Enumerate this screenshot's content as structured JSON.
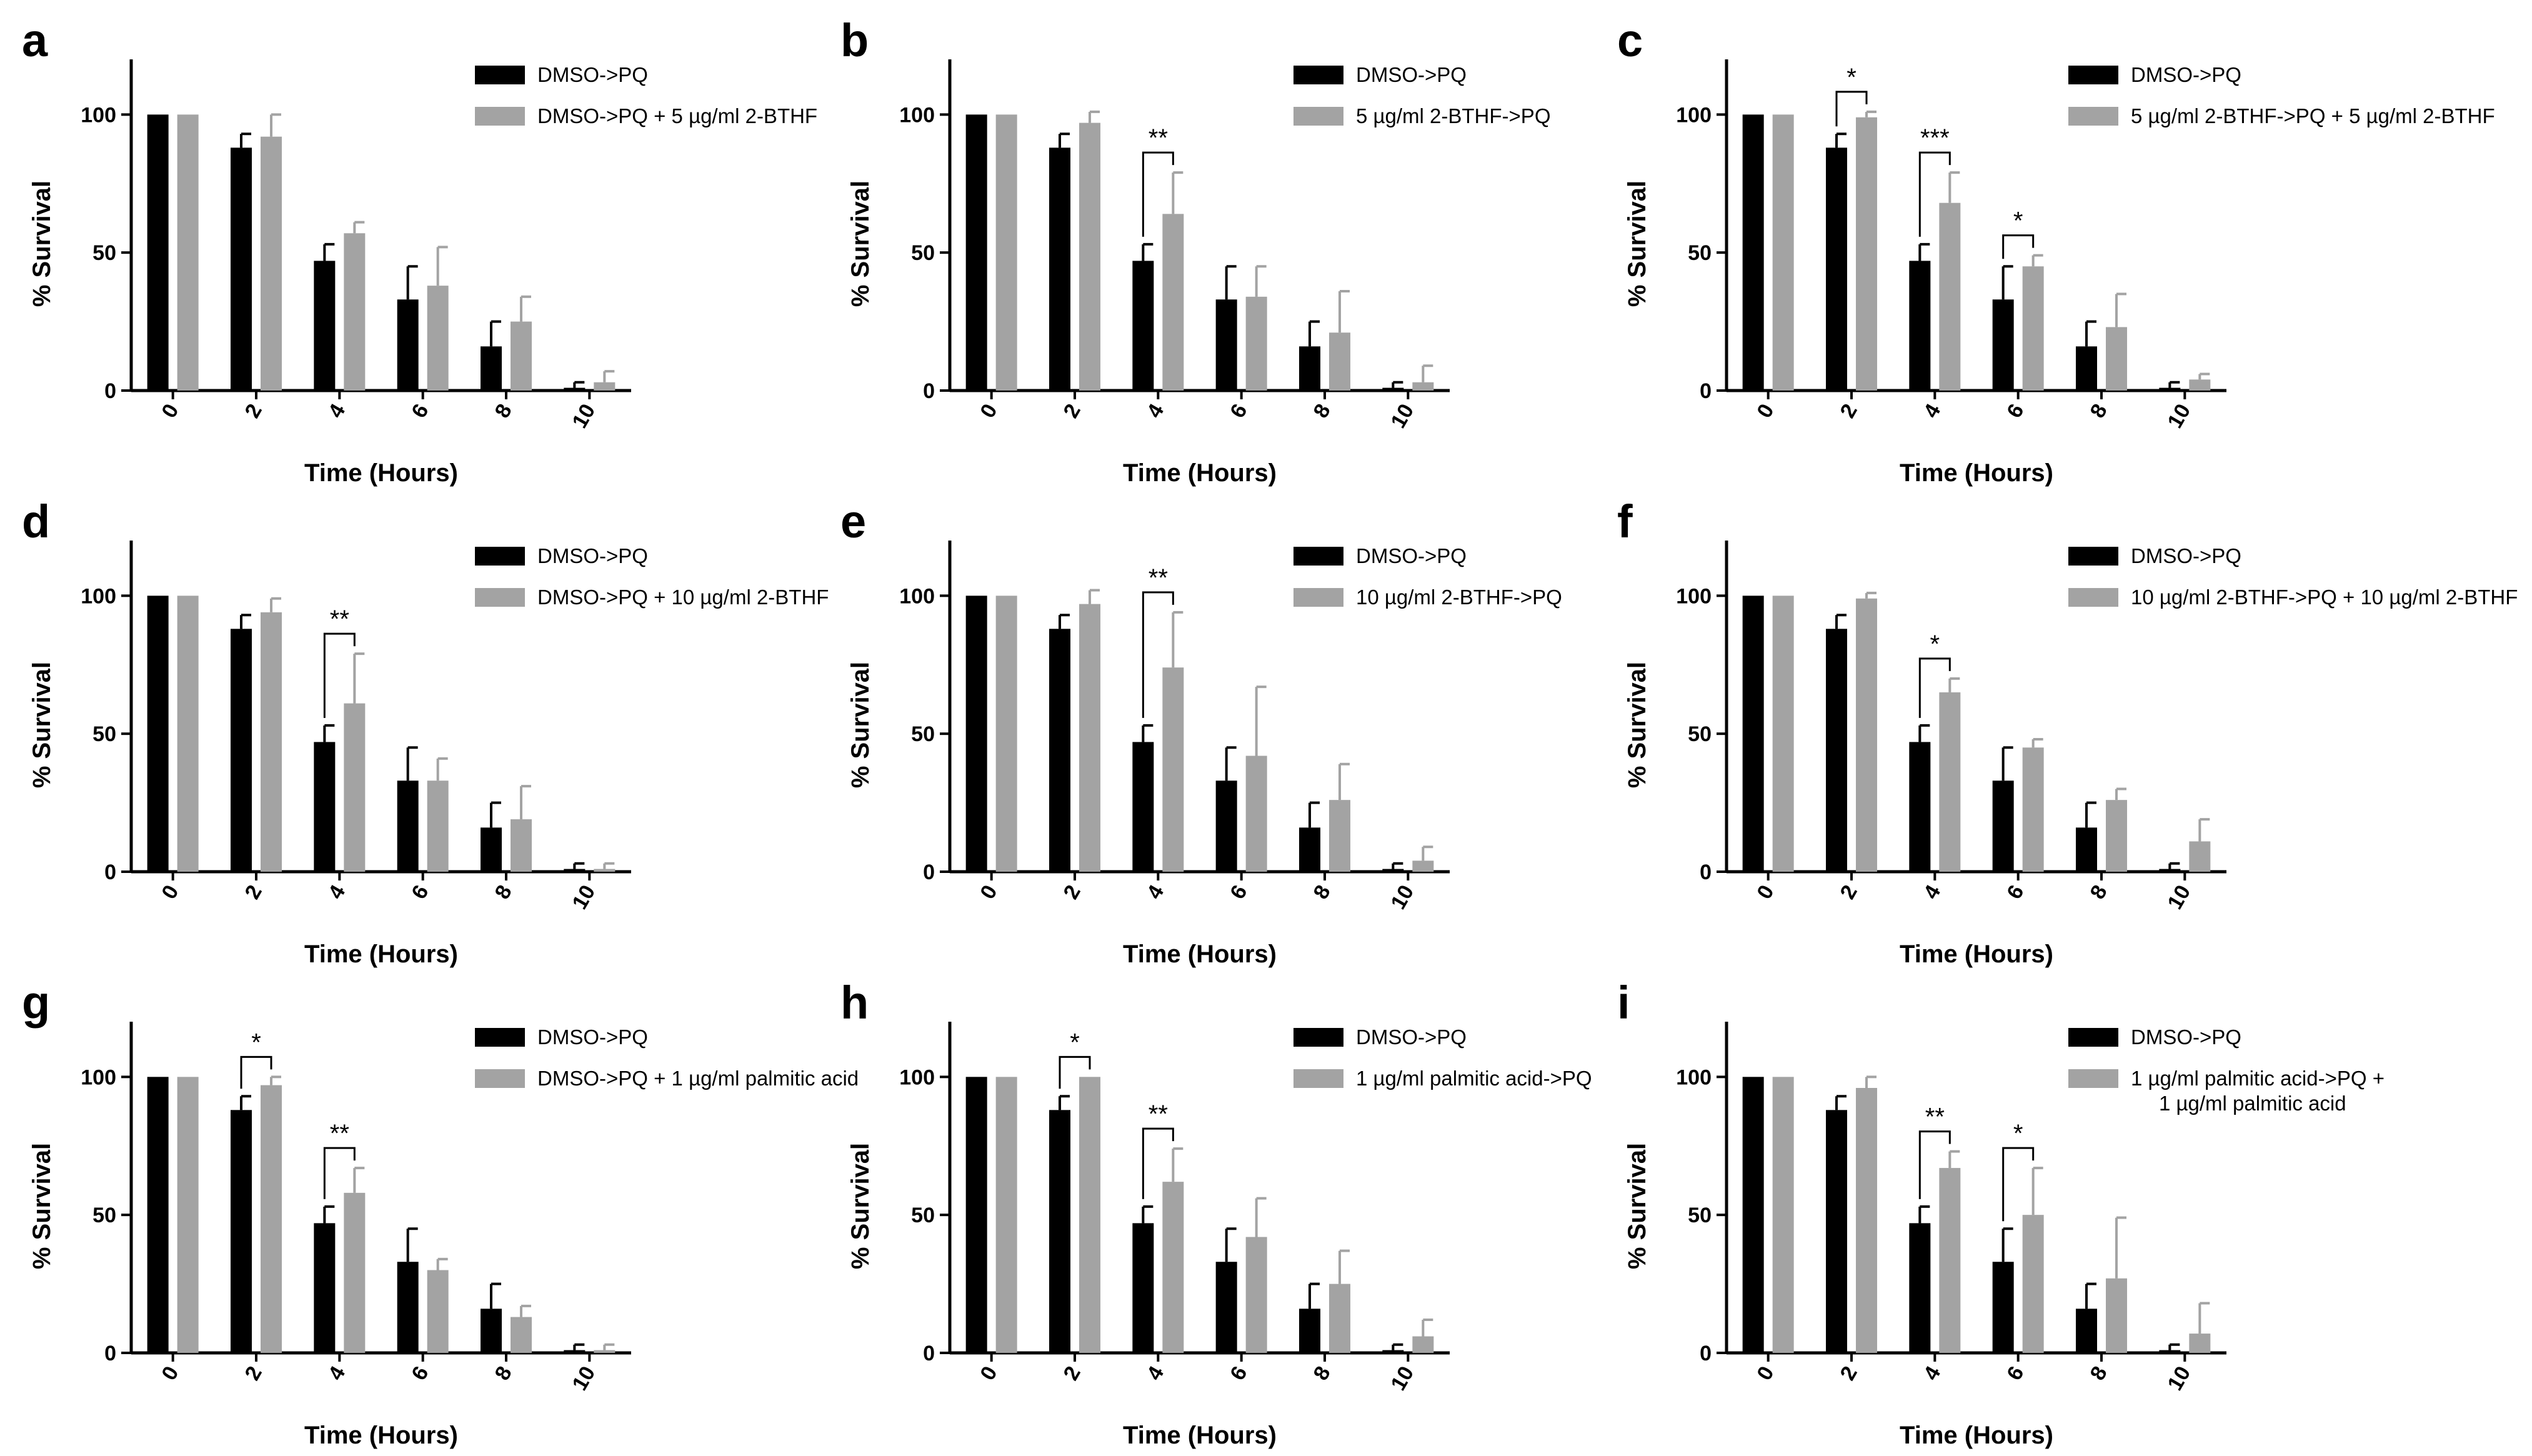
{
  "colors": {
    "series1": "#000000",
    "series2": "#a3a3a3",
    "axis": "#000000"
  },
  "chart_data": [
    {
      "type": "bar",
      "panel": "a",
      "categories": [
        "0",
        "2",
        "4",
        "6",
        "8",
        "10"
      ],
      "xlabel": "Time (Hours)",
      "ylabel": "% Survival",
      "ylim": [
        0,
        120
      ],
      "yticks": [
        0,
        50,
        100
      ],
      "series": [
        {
          "name": "DMSO->PQ",
          "values": [
            100,
            88,
            47,
            33,
            16,
            1
          ],
          "errors": [
            0,
            5,
            6,
            12,
            9,
            2
          ]
        },
        {
          "name": "DMSO->PQ + 5 µg/ml 2-BTHF",
          "values": [
            100,
            92,
            57,
            38,
            25,
            3
          ],
          "errors": [
            0,
            8,
            4,
            14,
            9,
            4
          ]
        }
      ],
      "significance": []
    },
    {
      "type": "bar",
      "panel": "b",
      "categories": [
        "0",
        "2",
        "4",
        "6",
        "8",
        "10"
      ],
      "xlabel": "Time (Hours)",
      "ylabel": "% Survival",
      "ylim": [
        0,
        120
      ],
      "yticks": [
        0,
        50,
        100
      ],
      "series": [
        {
          "name": "DMSO->PQ",
          "values": [
            100,
            88,
            47,
            33,
            16,
            1
          ],
          "errors": [
            0,
            5,
            6,
            12,
            9,
            2
          ]
        },
        {
          "name": "5 µg/ml 2-BTHF->PQ",
          "values": [
            100,
            97,
            64,
            34,
            21,
            3
          ],
          "errors": [
            0,
            4,
            15,
            11,
            15,
            6
          ]
        }
      ],
      "significance": [
        {
          "category": 2,
          "label": "**"
        }
      ]
    },
    {
      "type": "bar",
      "panel": "c",
      "categories": [
        "0",
        "2",
        "4",
        "6",
        "8",
        "10"
      ],
      "xlabel": "Time (Hours)",
      "ylabel": "% Survival",
      "ylim": [
        0,
        120
      ],
      "yticks": [
        0,
        50,
        100
      ],
      "series": [
        {
          "name": "DMSO->PQ",
          "values": [
            100,
            88,
            47,
            33,
            16,
            1
          ],
          "errors": [
            0,
            5,
            6,
            12,
            9,
            2
          ]
        },
        {
          "name": "5 µg/ml 2-BTHF->PQ + 5 µg/ml 2-BTHF",
          "values": [
            100,
            99,
            68,
            45,
            23,
            4
          ],
          "errors": [
            0,
            2,
            11,
            4,
            12,
            2
          ]
        }
      ],
      "significance": [
        {
          "category": 1,
          "label": "*"
        },
        {
          "category": 2,
          "label": "***"
        },
        {
          "category": 3,
          "label": "*"
        }
      ]
    },
    {
      "type": "bar",
      "panel": "d",
      "categories": [
        "0",
        "2",
        "4",
        "6",
        "8",
        "10"
      ],
      "xlabel": "Time (Hours)",
      "ylabel": "% Survival",
      "ylim": [
        0,
        120
      ],
      "yticks": [
        0,
        50,
        100
      ],
      "series": [
        {
          "name": "DMSO->PQ",
          "values": [
            100,
            88,
            47,
            33,
            16,
            1
          ],
          "errors": [
            0,
            5,
            6,
            12,
            9,
            2
          ]
        },
        {
          "name": "DMSO->PQ + 10 µg/ml 2-BTHF",
          "values": [
            100,
            94,
            61,
            33,
            19,
            1
          ],
          "errors": [
            0,
            5,
            18,
            8,
            12,
            2
          ]
        }
      ],
      "significance": [
        {
          "category": 2,
          "label": "**"
        }
      ]
    },
    {
      "type": "bar",
      "panel": "e",
      "categories": [
        "0",
        "2",
        "4",
        "6",
        "8",
        "10"
      ],
      "xlabel": "Time (Hours)",
      "ylabel": "% Survival",
      "ylim": [
        0,
        120
      ],
      "yticks": [
        0,
        50,
        100
      ],
      "series": [
        {
          "name": "DMSO->PQ",
          "values": [
            100,
            88,
            47,
            33,
            16,
            1
          ],
          "errors": [
            0,
            5,
            6,
            12,
            9,
            2
          ]
        },
        {
          "name": "10 µg/ml 2-BTHF->PQ",
          "values": [
            100,
            97,
            74,
            42,
            26,
            4
          ],
          "errors": [
            0,
            5,
            20,
            25,
            13,
            5
          ]
        }
      ],
      "significance": [
        {
          "category": 2,
          "label": "**"
        }
      ]
    },
    {
      "type": "bar",
      "panel": "f",
      "categories": [
        "0",
        "2",
        "4",
        "6",
        "8",
        "10"
      ],
      "xlabel": "Time (Hours)",
      "ylabel": "% Survival",
      "ylim": [
        0,
        120
      ],
      "yticks": [
        0,
        50,
        100
      ],
      "series": [
        {
          "name": "DMSO->PQ",
          "values": [
            100,
            88,
            47,
            33,
            16,
            1
          ],
          "errors": [
            0,
            5,
            6,
            12,
            9,
            2
          ]
        },
        {
          "name": "10 µg/ml 2-BTHF->PQ + 10 µg/ml 2-BTHF",
          "values": [
            100,
            99,
            65,
            45,
            26,
            11
          ],
          "errors": [
            0,
            2,
            5,
            3,
            4,
            8
          ]
        }
      ],
      "significance": [
        {
          "category": 2,
          "label": "*"
        }
      ]
    },
    {
      "type": "bar",
      "panel": "g",
      "categories": [
        "0",
        "2",
        "4",
        "6",
        "8",
        "10"
      ],
      "xlabel": "Time (Hours)",
      "ylabel": "% Survival",
      "ylim": [
        0,
        120
      ],
      "yticks": [
        0,
        50,
        100
      ],
      "series": [
        {
          "name": "DMSO->PQ",
          "values": [
            100,
            88,
            47,
            33,
            16,
            1
          ],
          "errors": [
            0,
            5,
            6,
            12,
            9,
            2
          ]
        },
        {
          "name": "DMSO->PQ + 1 µg/ml palmitic acid",
          "values": [
            100,
            97,
            58,
            30,
            13,
            1
          ],
          "errors": [
            0,
            3,
            9,
            4,
            4,
            2
          ]
        }
      ],
      "significance": [
        {
          "category": 1,
          "label": "*"
        },
        {
          "category": 2,
          "label": "**"
        }
      ]
    },
    {
      "type": "bar",
      "panel": "h",
      "categories": [
        "0",
        "2",
        "4",
        "6",
        "8",
        "10"
      ],
      "xlabel": "Time (Hours)",
      "ylabel": "% Survival",
      "ylim": [
        0,
        120
      ],
      "yticks": [
        0,
        50,
        100
      ],
      "series": [
        {
          "name": "DMSO->PQ",
          "values": [
            100,
            88,
            47,
            33,
            16,
            1
          ],
          "errors": [
            0,
            5,
            6,
            12,
            9,
            2
          ]
        },
        {
          "name": "1 µg/ml palmitic acid->PQ",
          "values": [
            100,
            100,
            62,
            42,
            25,
            6
          ],
          "errors": [
            0,
            0,
            12,
            14,
            12,
            6
          ]
        }
      ],
      "significance": [
        {
          "category": 1,
          "label": "*"
        },
        {
          "category": 2,
          "label": "**"
        }
      ]
    },
    {
      "type": "bar",
      "panel": "i",
      "categories": [
        "0",
        "2",
        "4",
        "6",
        "8",
        "10"
      ],
      "xlabel": "Time (Hours)",
      "ylabel": "% Survival",
      "ylim": [
        0,
        120
      ],
      "yticks": [
        0,
        50,
        100
      ],
      "series": [
        {
          "name": "DMSO->PQ",
          "values": [
            100,
            88,
            47,
            33,
            16,
            1
          ],
          "errors": [
            0,
            5,
            6,
            12,
            9,
            2
          ]
        },
        {
          "name": "1 µg/ml palmitic acid->PQ + 1 µg/ml palmitic acid",
          "values": [
            100,
            96,
            67,
            50,
            27,
            7
          ],
          "errors": [
            0,
            4,
            6,
            17,
            22,
            11
          ]
        }
      ],
      "significance": [
        {
          "category": 2,
          "label": "**"
        },
        {
          "category": 3,
          "label": "*"
        }
      ]
    }
  ]
}
